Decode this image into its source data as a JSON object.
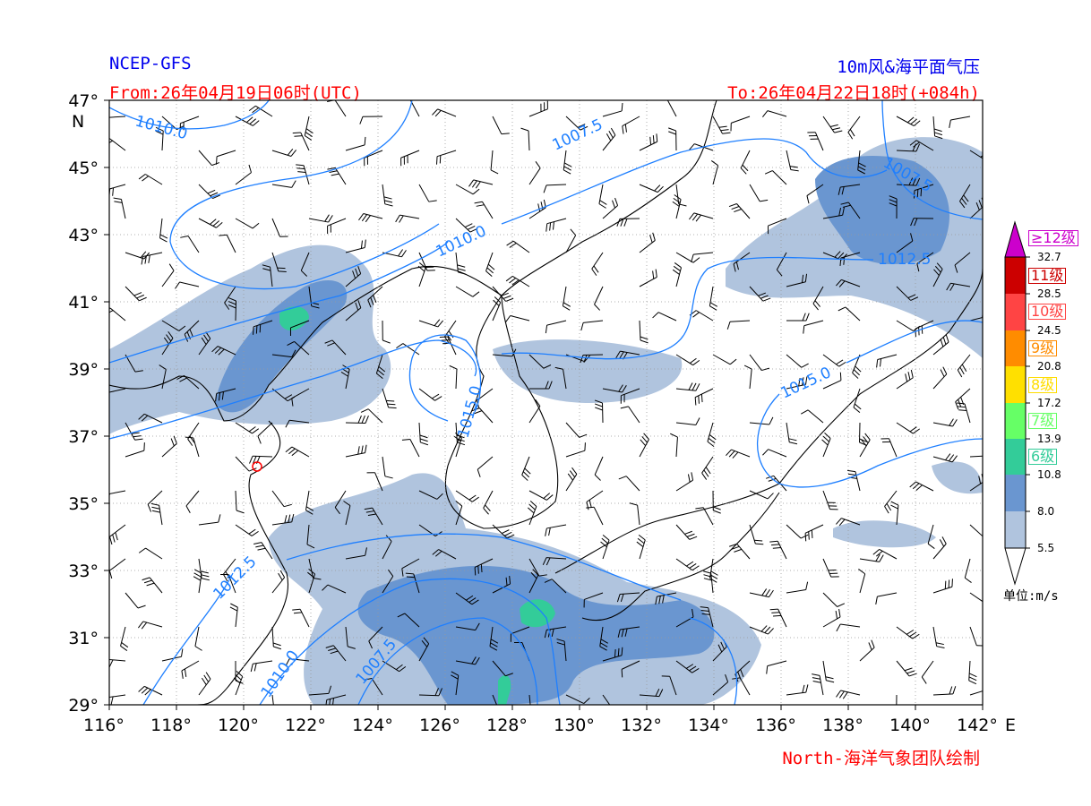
{
  "header": {
    "model": "NCEP-GFS",
    "title": "10m风&海平面气压",
    "from": "From:26年04月19日06时(UTC)",
    "to": "To:26年04月22日18时(+084h)"
  },
  "footer": {
    "credit": "North-海洋气象团队绘制"
  },
  "map": {
    "lon_range": [
      116,
      142
    ],
    "lat_range": [
      29,
      47
    ],
    "x_ticks": [
      "116°",
      "118°",
      "120°",
      "122°",
      "124°",
      "126°",
      "128°",
      "130°",
      "132°",
      "134°",
      "136°",
      "138°",
      "140°",
      "142°"
    ],
    "x_unit": "E",
    "y_ticks": [
      "29°",
      "31°",
      "33°",
      "35°",
      "37°",
      "39°",
      "41°",
      "43°",
      "45°",
      "47°"
    ],
    "y_unit": "N",
    "contour_labels": [
      "1010.0",
      "1007.5",
      "1010.0",
      "1007.5",
      "1012.5",
      "1015.0",
      "1015.0",
      "1012.5",
      "1010.0",
      "1007.5"
    ],
    "colors": {
      "isobar": "#1e7fff",
      "light_wind": "#b0c4de",
      "moderate_wind": "#6a96d0",
      "level6": "#33cc99",
      "level7": "#66ff66"
    }
  },
  "colorbar": {
    "ticks": [
      "32.7",
      "28.5",
      "24.5",
      "20.8",
      "17.2",
      "13.9",
      "10.8",
      "8.0",
      "5.5"
    ],
    "levels": [
      {
        "label": "≥12级",
        "color": "#cc00cc"
      },
      {
        "label": "11级",
        "color": "#cc0000"
      },
      {
        "label": "10级",
        "color": "#ff4444"
      },
      {
        "label": "9级",
        "color": "#ff8c00"
      },
      {
        "label": "8级",
        "color": "#ffdd00"
      },
      {
        "label": "7级",
        "color": "#66ff66"
      },
      {
        "label": "6级",
        "color": "#33cc99"
      }
    ],
    "unit": "单位:m/s"
  }
}
